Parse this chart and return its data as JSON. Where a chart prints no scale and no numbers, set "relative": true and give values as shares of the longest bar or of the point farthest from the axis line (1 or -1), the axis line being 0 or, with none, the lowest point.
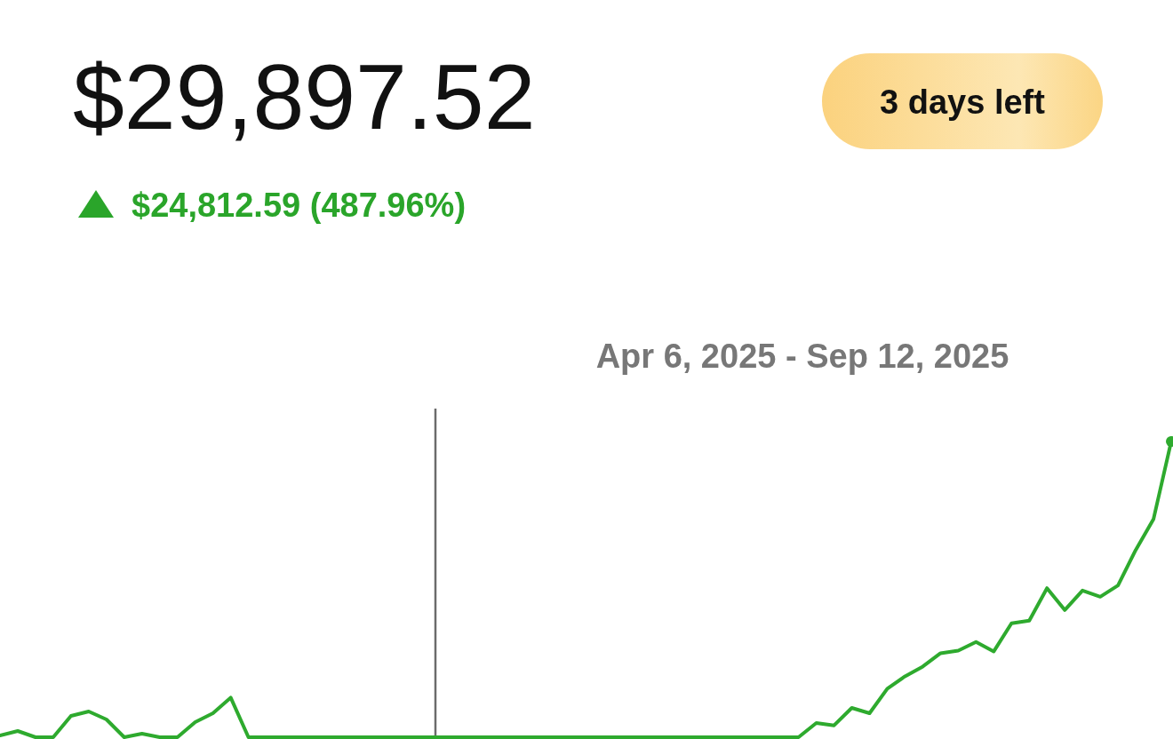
{
  "chart_data": {
    "type": "line",
    "title": "$29,897.52",
    "subtitle": "$24,812.59 (487.96%)",
    "annotations": [
      "3 days left",
      "Apr 6, 2025 - Sep 12, 2025"
    ],
    "relative": true,
    "categories": [
      null,
      null,
      null,
      null,
      null,
      null,
      null,
      null,
      null,
      null,
      null,
      null,
      null,
      null,
      null,
      null,
      null,
      null,
      null,
      null,
      null,
      null,
      null,
      null,
      null,
      null,
      null,
      null,
      null,
      null,
      null,
      null,
      null,
      null,
      null,
      null,
      null,
      null,
      null,
      null,
      null,
      null,
      null,
      null,
      null,
      null,
      null,
      null,
      null,
      null,
      null,
      null,
      null,
      null,
      null,
      null,
      null,
      null,
      null,
      null,
      null,
      null,
      null,
      null,
      null,
      null,
      null
    ],
    "series": [
      {
        "color": "#2eaa2e",
        "values": [
          0.006,
          0.021,
          0,
          0,
          0.072,
          0.087,
          0.06,
          0,
          0.012,
          0,
          0,
          0.051,
          0.081,
          0.134,
          0,
          0,
          0,
          0,
          0,
          0,
          0,
          0,
          0,
          0,
          0,
          0,
          0,
          0,
          0,
          0,
          0,
          0,
          0,
          0,
          0,
          0,
          0,
          0,
          0,
          0,
          0,
          0,
          0,
          0,
          0,
          0,
          0.048,
          0.04,
          0.099,
          0.081,
          0.164,
          0.206,
          0.239,
          0.284,
          0.293,
          0.322,
          0.29,
          0.385,
          0.394,
          0.504,
          0.43,
          0.496,
          0.475,
          0.513,
          0.633,
          0.737,
          1
        ]
      }
    ]
  }
}
